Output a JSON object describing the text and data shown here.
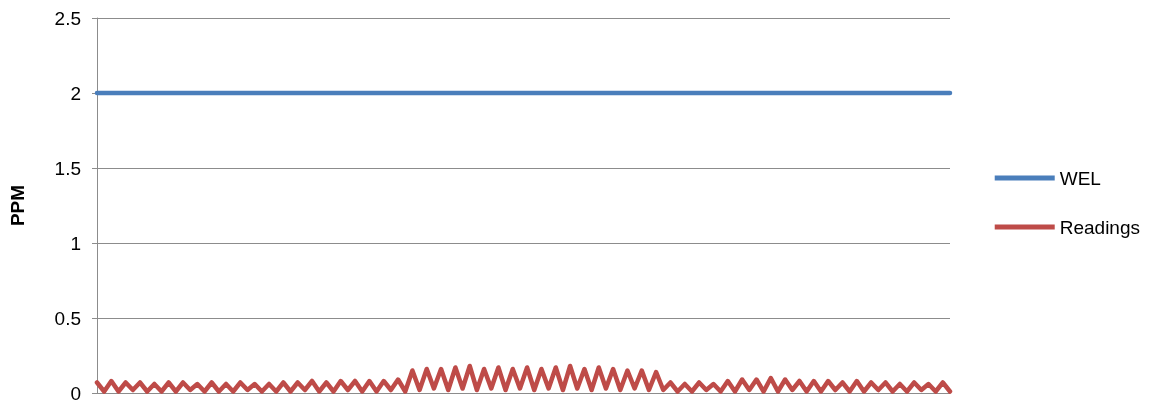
{
  "chart_data": {
    "type": "line",
    "ylabel": "PPM",
    "categories": [
      null,
      null,
      null,
      null,
      null,
      null,
      null,
      null,
      null,
      null,
      null,
      null,
      null,
      null,
      null,
      null,
      null,
      null,
      null,
      null,
      null,
      null,
      null,
      null,
      null,
      null,
      null,
      null,
      null,
      null,
      null,
      null,
      null,
      null,
      null,
      null,
      null,
      null,
      null,
      null,
      null,
      null,
      null,
      null,
      null,
      null,
      null,
      null,
      null,
      null,
      null,
      null,
      null,
      null,
      null,
      null,
      null,
      null,
      null,
      null,
      null,
      null,
      null,
      null,
      null,
      null,
      null,
      null,
      null,
      null,
      null,
      null,
      null,
      null,
      null,
      null,
      null,
      null,
      null,
      null,
      null,
      null,
      null,
      null,
      null,
      null,
      null,
      null,
      null,
      null,
      null,
      null,
      null,
      null,
      null,
      null,
      null,
      null,
      null,
      null,
      null,
      null,
      null,
      null,
      null,
      null,
      null,
      null,
      null,
      null,
      null,
      null,
      null,
      null,
      null,
      null,
      null,
      null,
      null,
      null
    ],
    "series": [
      {
        "name": "WEL",
        "color": "#4a7ebb",
        "values": [
          2,
          2,
          2,
          2,
          2,
          2,
          2,
          2,
          2,
          2,
          2,
          2,
          2,
          2,
          2,
          2,
          2,
          2,
          2,
          2,
          2,
          2,
          2,
          2,
          2,
          2,
          2,
          2,
          2,
          2,
          2,
          2,
          2,
          2,
          2,
          2,
          2,
          2,
          2,
          2,
          2,
          2,
          2,
          2,
          2,
          2,
          2,
          2,
          2,
          2,
          2,
          2,
          2,
          2,
          2,
          2,
          2,
          2,
          2,
          2,
          2,
          2,
          2,
          2,
          2,
          2,
          2,
          2,
          2,
          2,
          2,
          2,
          2,
          2,
          2,
          2,
          2,
          2,
          2,
          2,
          2,
          2,
          2,
          2,
          2,
          2,
          2,
          2,
          2,
          2,
          2,
          2,
          2,
          2,
          2,
          2,
          2,
          2,
          2,
          2,
          2,
          2,
          2,
          2,
          2,
          2,
          2,
          2,
          2,
          2,
          2,
          2,
          2,
          2,
          2,
          2,
          2,
          2,
          2,
          2
        ]
      },
      {
        "name": "Readings",
        "color": "#be4b48",
        "values": [
          0.07,
          0.01,
          0.08,
          0.01,
          0.07,
          0.02,
          0.07,
          0.01,
          0.06,
          0.01,
          0.07,
          0.01,
          0.07,
          0.02,
          0.06,
          0.01,
          0.07,
          0.01,
          0.06,
          0.01,
          0.07,
          0.02,
          0.06,
          0.01,
          0.06,
          0.01,
          0.07,
          0.01,
          0.07,
          0.02,
          0.08,
          0.01,
          0.07,
          0.01,
          0.08,
          0.02,
          0.08,
          0.01,
          0.08,
          0.01,
          0.08,
          0.02,
          0.09,
          0.01,
          0.15,
          0.02,
          0.16,
          0.03,
          0.16,
          0.02,
          0.17,
          0.03,
          0.18,
          0.02,
          0.16,
          0.03,
          0.17,
          0.02,
          0.16,
          0.03,
          0.17,
          0.02,
          0.16,
          0.03,
          0.17,
          0.02,
          0.18,
          0.03,
          0.16,
          0.02,
          0.17,
          0.03,
          0.16,
          0.02,
          0.15,
          0.03,
          0.15,
          0.02,
          0.14,
          0.02,
          0.07,
          0.01,
          0.06,
          0.01,
          0.07,
          0.02,
          0.06,
          0.01,
          0.08,
          0.01,
          0.09,
          0.02,
          0.09,
          0.01,
          0.1,
          0.01,
          0.09,
          0.02,
          0.08,
          0.01,
          0.08,
          0.01,
          0.08,
          0.02,
          0.07,
          0.01,
          0.08,
          0.01,
          0.07,
          0.02,
          0.07,
          0.01,
          0.06,
          0.01,
          0.07,
          0.02,
          0.06,
          0.01,
          0.07,
          0.01
        ]
      }
    ],
    "ylim": [
      0,
      2.5
    ],
    "yticks": [
      0,
      0.5,
      1,
      1.5,
      2,
      2.5
    ],
    "grid": "y",
    "legend": "right",
    "tick_labels": "y",
    "line_style": "solid"
  }
}
